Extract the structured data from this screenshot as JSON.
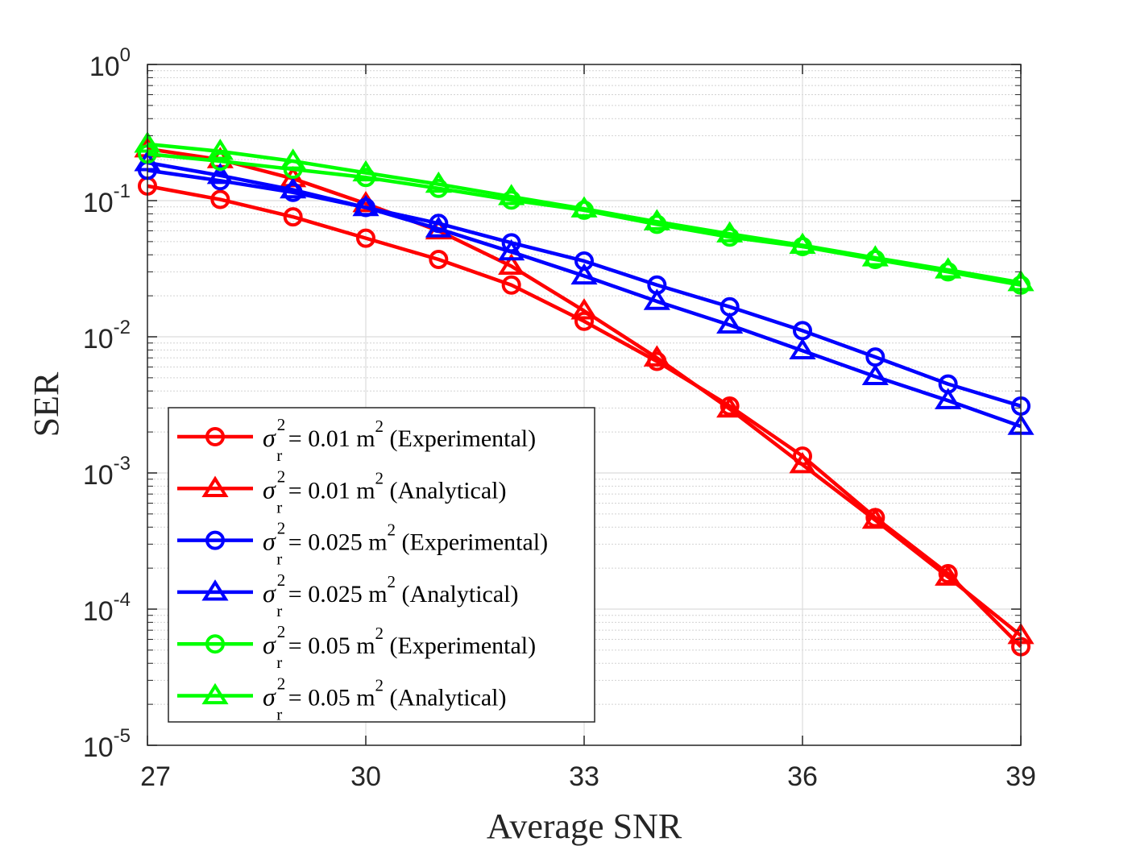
{
  "chart_data": {
    "type": "line",
    "title": "",
    "xlabel": "Average SNR",
    "ylabel": "SER",
    "xlim": [
      27,
      39
    ],
    "ylim": [
      1e-05,
      1
    ],
    "yscale": "log",
    "grid": true,
    "minor_grid": true,
    "xticks": [
      27,
      30,
      33,
      36,
      39
    ],
    "xtick_labels": [
      "27",
      "30",
      "33",
      "36",
      "39"
    ],
    "ytick_exponents": [
      0,
      -1,
      -2,
      -3,
      -4,
      -5
    ],
    "ytick_base": "10",
    "legend_location": "lower-left",
    "sigma_symbol": "σ",
    "sigma_superscript": "2",
    "sigma_subscript": "r",
    "x": [
      27,
      28,
      29,
      30,
      31,
      32,
      33,
      34,
      35,
      36,
      37,
      38,
      39
    ],
    "series": [
      {
        "name": "σr² = 0.01 m² (Experimental)",
        "legend_value": " = 0.01 m",
        "legend_unit_exp": "2",
        "legend_note": " (Experimental)",
        "color": "#ff0000",
        "marker": "circle",
        "values": [
          0.128,
          0.102,
          0.076,
          0.053,
          0.037,
          0.024,
          0.013,
          0.0066,
          0.0031,
          0.00133,
          0.00047,
          0.000182,
          5.3e-05
        ]
      },
      {
        "name": "σr² = 0.01 m² (Analytical)",
        "legend_value": " = 0.01 m",
        "legend_unit_exp": "2",
        "legend_note": " (Analytical)",
        "color": "#ff0000",
        "marker": "triangle",
        "values": [
          0.24,
          0.2,
          0.145,
          0.095,
          0.06,
          0.033,
          0.0155,
          0.007,
          0.00295,
          0.00115,
          0.00045,
          0.000172,
          6.4e-05
        ]
      },
      {
        "name": "σr² = 0.025 m² (Experimental)",
        "legend_value": " = 0.025 m",
        "legend_unit_exp": "2",
        "legend_note": " (Experimental)",
        "color": "#0000ff",
        "marker": "circle",
        "values": [
          0.167,
          0.14,
          0.115,
          0.089,
          0.068,
          0.049,
          0.036,
          0.024,
          0.0166,
          0.0111,
          0.0071,
          0.0045,
          0.0031
        ]
      },
      {
        "name": "σr² = 0.025 m² (Analytical)",
        "legend_value": " = 0.025 m",
        "legend_unit_exp": "2",
        "legend_note": " (Analytical)",
        "color": "#0000ff",
        "marker": "triangle",
        "values": [
          0.19,
          0.153,
          0.12,
          0.089,
          0.062,
          0.042,
          0.028,
          0.0182,
          0.0122,
          0.0079,
          0.0051,
          0.0034,
          0.0022
        ]
      },
      {
        "name": "σr² = 0.05 m² (Experimental)",
        "legend_value": " = 0.05 m",
        "legend_unit_exp": "2",
        "legend_note": " (Experimental)",
        "color": "#00ff00",
        "marker": "circle",
        "values": [
          0.22,
          0.195,
          0.17,
          0.148,
          0.123,
          0.101,
          0.085,
          0.067,
          0.054,
          0.046,
          0.037,
          0.03,
          0.024
        ]
      },
      {
        "name": "σr² = 0.05 m² (Analytical)",
        "legend_value": " = 0.05 m",
        "legend_unit_exp": "2",
        "legend_note": " (Analytical)",
        "color": "#00ff00",
        "marker": "triangle",
        "values": [
          0.26,
          0.23,
          0.195,
          0.16,
          0.132,
          0.107,
          0.087,
          0.07,
          0.057,
          0.047,
          0.038,
          0.031,
          0.025
        ]
      }
    ]
  }
}
